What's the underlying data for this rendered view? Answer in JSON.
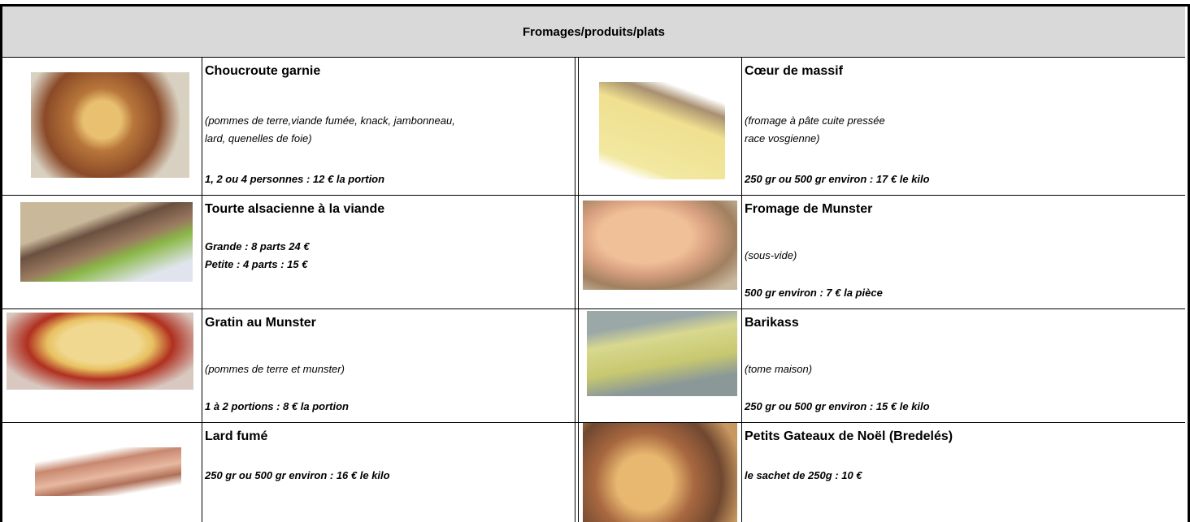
{
  "header": {
    "title": "Fromages/produits/plats"
  },
  "rows": [
    {
      "left": {
        "name": "Choucroute garnie",
        "description": [
          "(pommes de terre,viande fumée, knack, jambonneau,",
          "lard, quenelles de foie)"
        ],
        "price": [
          "1, 2 ou 4 personnes : 12 €  la portion"
        ]
      },
      "right": {
        "name": "Cœur de massif",
        "description": [
          "(fromage à pâte cuite pressée",
          "race vosgienne)"
        ],
        "price": [
          "250 gr ou 500 gr environ : 17 € le kilo"
        ]
      }
    },
    {
      "left": {
        "name": "Tourte alsacienne à la viande",
        "description": [],
        "price": [
          "Grande : 8 parts 24 €",
          "Petite : 4 parts : 15 €"
        ]
      },
      "right": {
        "name": "Fromage de Munster",
        "description": [
          "(sous-vide)"
        ],
        "price": [
          "500 gr environ : 7 € la pièce"
        ]
      }
    },
    {
      "left": {
        "name": "Gratin au Munster",
        "description": [
          "(pommes de terre et munster)"
        ],
        "price": [
          "1 à 2 portions : 8 € la portion"
        ]
      },
      "right": {
        "name": "Barikass",
        "description": [
          "(tome maison)"
        ],
        "price": [
          "250 gr ou 500 gr environ : 15 € le kilo"
        ]
      }
    },
    {
      "left": {
        "name": "Lard fumé",
        "description": [],
        "price": [
          "250 gr ou 500 gr environ : 16 € le kilo"
        ]
      },
      "right": {
        "name": "Petits Gateaux de Noël (Bredelés)",
        "description": [],
        "price": [
          "le sachet de 250g : 10 €"
        ]
      }
    }
  ]
}
